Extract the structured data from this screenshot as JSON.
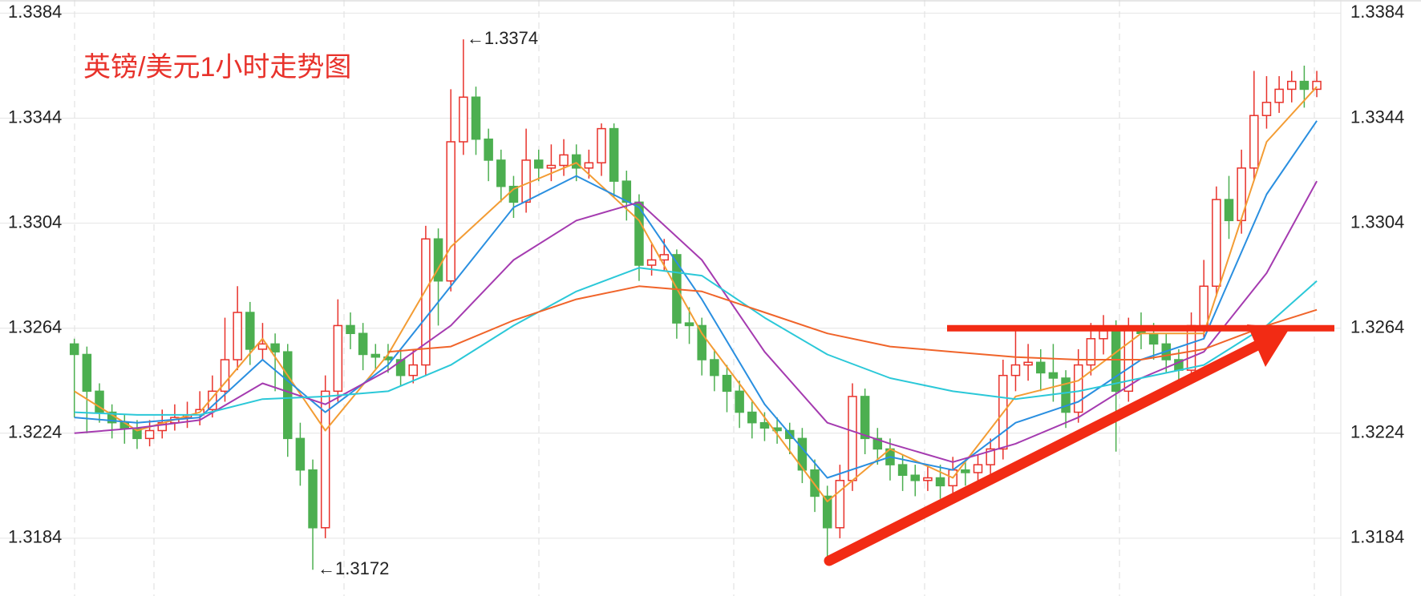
{
  "chart_data": {
    "type": "candlestick",
    "title": "英镑/美元1小时走势图",
    "annotations": [
      "←1.3374",
      "←1.3172"
    ],
    "ylim": [
      1.3162,
      1.3389
    ],
    "yticks": [
      1.3384,
      1.3344,
      1.3304,
      1.3264,
      1.3224,
      1.3184
    ],
    "grid": true,
    "up_color": "#e8322b",
    "down_color": "#4caf50",
    "hline": 1.3264,
    "hline_color": "#f22b14",
    "open": [
      1.3258,
      1.3254,
      1.324,
      1.3232,
      1.3228,
      1.3226,
      1.3222,
      1.3225,
      1.3228,
      1.323,
      1.3231,
      1.3233,
      1.324,
      1.3252,
      1.327,
      1.3256,
      1.3258,
      1.3255,
      1.3222,
      1.321,
      1.3188,
      1.324,
      1.3265,
      1.3262,
      1.3254,
      1.3253,
      1.3252,
      1.3246,
      1.325,
      1.3298,
      1.3282,
      1.3335,
      1.3352,
      1.3336,
      1.3328,
      1.3318,
      1.3312,
      1.3328,
      1.3325,
      1.3326,
      1.333,
      1.3325,
      1.3327,
      1.334,
      1.332,
      1.3312,
      1.3288,
      1.329,
      1.3292,
      1.3266,
      1.3265,
      1.3252,
      1.3246,
      1.324,
      1.3232,
      1.3228,
      1.3226,
      1.3225,
      1.3222,
      1.321,
      1.32,
      1.3188,
      1.3206,
      1.3238,
      1.3222,
      1.3218,
      1.3212,
      1.3208,
      1.3206,
      1.3207,
      1.3204,
      1.321,
      1.3209,
      1.3212,
      1.3218,
      1.3246,
      1.325,
      1.3251,
      1.3247,
      1.3245,
      1.3232,
      1.325,
      1.326,
      1.3263,
      1.324,
      1.3264,
      1.3262,
      1.3258,
      1.3252,
      1.3248,
      1.3265,
      1.328,
      1.3313,
      1.3305,
      1.3325,
      1.3345,
      1.335,
      1.3355,
      1.3358,
      1.3355
    ],
    "high": [
      1.326,
      1.3257,
      1.3243,
      1.3235,
      1.3231,
      1.3229,
      1.3229,
      1.3233,
      1.3235,
      1.3236,
      1.324,
      1.3246,
      1.3268,
      1.328,
      1.3274,
      1.3266,
      1.3262,
      1.3258,
      1.3228,
      1.3214,
      1.3246,
      1.3275,
      1.327,
      1.3266,
      1.3258,
      1.3258,
      1.3256,
      1.3256,
      1.3303,
      1.3302,
      1.3355,
      1.3374,
      1.3356,
      1.334,
      1.3332,
      1.3322,
      1.334,
      1.3332,
      1.3334,
      1.3336,
      1.3334,
      1.3332,
      1.3342,
      1.3342,
      1.3324,
      1.3315,
      1.3296,
      1.3298,
      1.3294,
      1.3272,
      1.3268,
      1.3256,
      1.325,
      1.3244,
      1.3236,
      1.3232,
      1.323,
      1.3228,
      1.3226,
      1.3214,
      1.3204,
      1.3212,
      1.3243,
      1.3241,
      1.3226,
      1.3222,
      1.3216,
      1.3212,
      1.3212,
      1.3212,
      1.3215,
      1.3214,
      1.3216,
      1.3222,
      1.3252,
      1.3264,
      1.3258,
      1.3256,
      1.3258,
      1.3248,
      1.3256,
      1.3266,
      1.3269,
      1.3267,
      1.3268,
      1.327,
      1.3266,
      1.3262,
      1.3256,
      1.327,
      1.329,
      1.3318,
      1.3322,
      1.3332,
      1.3362,
      1.336,
      1.336,
      1.3362,
      1.3364,
      1.3362
    ],
    "low": [
      1.323,
      1.3224,
      1.3228,
      1.3222,
      1.322,
      1.3218,
      1.3219,
      1.3222,
      1.3225,
      1.3226,
      1.3227,
      1.323,
      1.3236,
      1.3248,
      1.325,
      1.3252,
      1.324,
      1.3215,
      1.3204,
      1.3172,
      1.3184,
      1.3236,
      1.3256,
      1.3248,
      1.3248,
      1.3247,
      1.3242,
      1.3243,
      1.3246,
      1.3265,
      1.3278,
      1.333,
      1.333,
      1.332,
      1.3312,
      1.3306,
      1.3308,
      1.332,
      1.332,
      1.3322,
      1.332,
      1.3321,
      1.3322,
      1.3314,
      1.3305,
      1.3282,
      1.3284,
      1.3286,
      1.326,
      1.3258,
      1.3246,
      1.324,
      1.3232,
      1.3226,
      1.3222,
      1.3221,
      1.322,
      1.3216,
      1.3205,
      1.3194,
      1.3176,
      1.3184,
      1.3202,
      1.3216,
      1.3212,
      1.3206,
      1.3202,
      1.32,
      1.3202,
      1.3199,
      1.32,
      1.3204,
      1.3205,
      1.3208,
      1.3214,
      1.324,
      1.3244,
      1.324,
      1.3236,
      1.3226,
      1.3228,
      1.3246,
      1.3254,
      1.3217,
      1.3236,
      1.3256,
      1.3252,
      1.3247,
      1.3243,
      1.3244,
      1.326,
      1.3276,
      1.3298,
      1.33,
      1.332,
      1.334,
      1.3346,
      1.335,
      1.3348,
      1.3352
    ],
    "close": [
      1.3254,
      1.324,
      1.3232,
      1.3228,
      1.3226,
      1.3222,
      1.3225,
      1.3228,
      1.323,
      1.3231,
      1.3233,
      1.324,
      1.3252,
      1.327,
      1.3256,
      1.3258,
      1.3255,
      1.3222,
      1.321,
      1.3188,
      1.324,
      1.3265,
      1.3262,
      1.3254,
      1.3253,
      1.3252,
      1.3246,
      1.325,
      1.3298,
      1.3282,
      1.3335,
      1.3352,
      1.3336,
      1.3328,
      1.3318,
      1.3312,
      1.3328,
      1.3325,
      1.3326,
      1.333,
      1.3325,
      1.3327,
      1.334,
      1.332,
      1.3312,
      1.3288,
      1.329,
      1.3292,
      1.3266,
      1.3265,
      1.3252,
      1.3246,
      1.324,
      1.3232,
      1.3228,
      1.3226,
      1.3225,
      1.3222,
      1.321,
      1.32,
      1.3188,
      1.3206,
      1.3238,
      1.3222,
      1.3218,
      1.3212,
      1.3208,
      1.3206,
      1.3207,
      1.3204,
      1.321,
      1.3209,
      1.3212,
      1.3218,
      1.3246,
      1.325,
      1.3251,
      1.3247,
      1.3245,
      1.3232,
      1.325,
      1.326,
      1.3263,
      1.324,
      1.3264,
      1.3262,
      1.3258,
      1.3252,
      1.3248,
      1.3265,
      1.328,
      1.3313,
      1.3305,
      1.3325,
      1.3345,
      1.335,
      1.3355,
      1.3358,
      1.3355,
      1.3358
    ],
    "series": [
      {
        "color": "#f39c34",
        "x": [
          0,
          5,
          10,
          15,
          20,
          25,
          30,
          35,
          40,
          45,
          50,
          55,
          60,
          65,
          70,
          75,
          80,
          85,
          90,
          95,
          99
        ],
        "values": [
          1.324,
          1.3225,
          1.3232,
          1.326,
          1.3225,
          1.3254,
          1.3295,
          1.3317,
          1.3327,
          1.3305,
          1.3262,
          1.323,
          1.3198,
          1.3218,
          1.3207,
          1.3238,
          1.3244,
          1.3262,
          1.3262,
          1.3335,
          1.3356
        ]
      },
      {
        "color": "#2a8fe0",
        "x": [
          0,
          5,
          10,
          15,
          20,
          25,
          30,
          35,
          40,
          45,
          50,
          55,
          60,
          65,
          70,
          75,
          80,
          85,
          90,
          95,
          99
        ],
        "values": [
          1.323,
          1.3228,
          1.323,
          1.3252,
          1.3232,
          1.325,
          1.328,
          1.331,
          1.3322,
          1.331,
          1.3275,
          1.3235,
          1.3207,
          1.3215,
          1.321,
          1.3228,
          1.3236,
          1.3252,
          1.326,
          1.3315,
          1.3343
        ]
      },
      {
        "color": "#a53bb0",
        "x": [
          0,
          5,
          10,
          15,
          20,
          25,
          30,
          35,
          40,
          45,
          50,
          55,
          60,
          65,
          70,
          75,
          80,
          85,
          90,
          95,
          99
        ],
        "values": [
          1.3224,
          1.3226,
          1.3229,
          1.3243,
          1.3235,
          1.3248,
          1.3265,
          1.329,
          1.3305,
          1.3312,
          1.329,
          1.3255,
          1.3228,
          1.322,
          1.3213,
          1.322,
          1.323,
          1.3245,
          1.3255,
          1.3285,
          1.332
        ]
      },
      {
        "color": "#2bc8d8",
        "x": [
          0,
          5,
          10,
          15,
          20,
          25,
          30,
          35,
          40,
          45,
          50,
          55,
          60,
          65,
          70,
          75,
          80,
          85,
          90,
          95,
          99
        ],
        "values": [
          1.3232,
          1.3231,
          1.3231,
          1.3237,
          1.3238,
          1.324,
          1.325,
          1.3265,
          1.3278,
          1.3287,
          1.3284,
          1.3268,
          1.3254,
          1.3245,
          1.324,
          1.3237,
          1.324,
          1.3245,
          1.325,
          1.3265,
          1.3282
        ]
      },
      {
        "color": "#f0642a",
        "x": [
          25,
          30,
          35,
          40,
          45,
          50,
          55,
          60,
          65,
          70,
          75,
          80,
          85,
          90,
          95,
          99
        ],
        "values": [
          1.3255,
          1.3257,
          1.3267,
          1.3275,
          1.328,
          1.3278,
          1.327,
          1.3262,
          1.3257,
          1.3255,
          1.3253,
          1.3252,
          1.3252,
          1.3256,
          1.3265,
          1.3271
        ]
      }
    ]
  }
}
